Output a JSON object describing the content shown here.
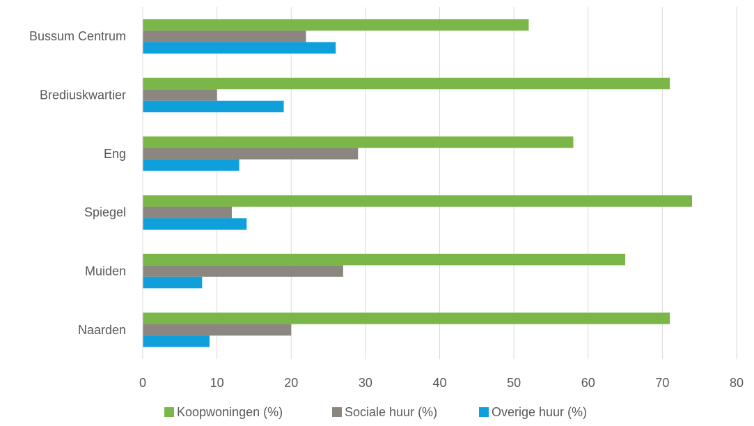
{
  "chart_data": {
    "type": "bar",
    "orientation": "horizontal",
    "categories": [
      "Bussum Centrum",
      "Brediuskwartier",
      "Eng",
      "Spiegel",
      "Muiden",
      "Naarden"
    ],
    "series": [
      {
        "name": "Koopwoningen (%)",
        "color": "#7AB648",
        "values": [
          52,
          71,
          58,
          74,
          65,
          71
        ]
      },
      {
        "name": "Sociale huur (%)",
        "color": "#8C8680",
        "values": [
          22,
          10,
          29,
          12,
          27,
          20
        ]
      },
      {
        "name": "Overige huur (%)",
        "color": "#0FA0DC",
        "values": [
          26,
          19,
          13,
          14,
          8,
          9
        ]
      }
    ],
    "xlim": [
      0,
      80
    ],
    "xticks": [
      0,
      10,
      20,
      30,
      40,
      50,
      60,
      70,
      80
    ],
    "grid": true,
    "legend_position": "bottom",
    "title": "",
    "xlabel": "",
    "ylabel": ""
  }
}
